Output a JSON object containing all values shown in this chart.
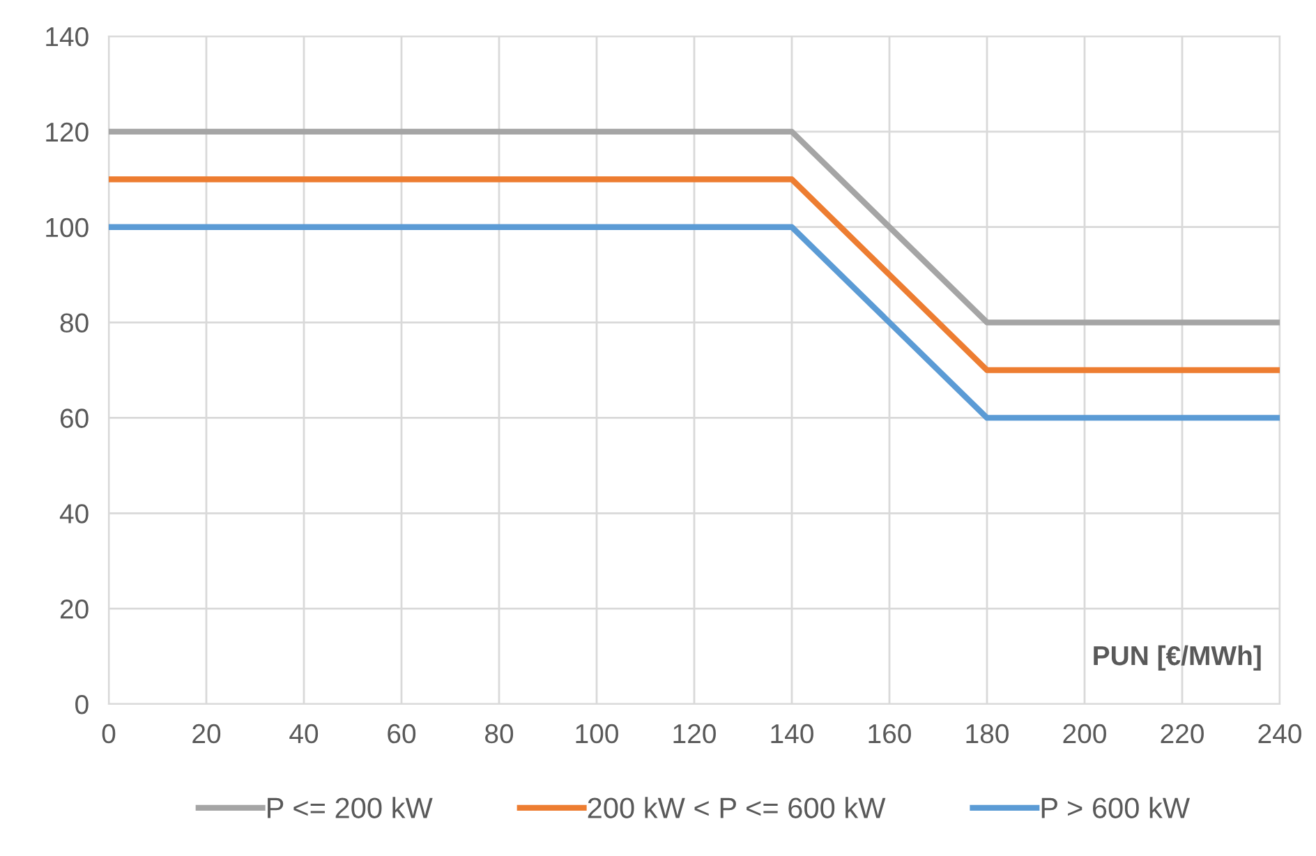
{
  "chart_data": {
    "type": "line",
    "xlabel": "PUN [€/MWh]",
    "x": [
      0,
      140,
      180,
      240
    ],
    "series": [
      {
        "name": "P <= 200 kW",
        "color": "#a5a5a5",
        "values": [
          120,
          120,
          80,
          80
        ]
      },
      {
        "name": "200 kW < P <= 600 kW",
        "color": "#ed7d31",
        "values": [
          110,
          110,
          70,
          70
        ]
      },
      {
        "name": "P > 600 kW",
        "color": "#5b9bd5",
        "values": [
          100,
          100,
          60,
          60
        ]
      }
    ],
    "xlim": [
      0,
      240
    ],
    "xticks": [
      0,
      20,
      40,
      60,
      80,
      100,
      120,
      140,
      160,
      180,
      200,
      220,
      240
    ],
    "ylim": [
      0,
      140
    ],
    "yticks": [
      0,
      20,
      40,
      60,
      80,
      100,
      120,
      140
    ],
    "grid": true,
    "legend": "bottom",
    "marker": "none",
    "line_style": "solid"
  }
}
